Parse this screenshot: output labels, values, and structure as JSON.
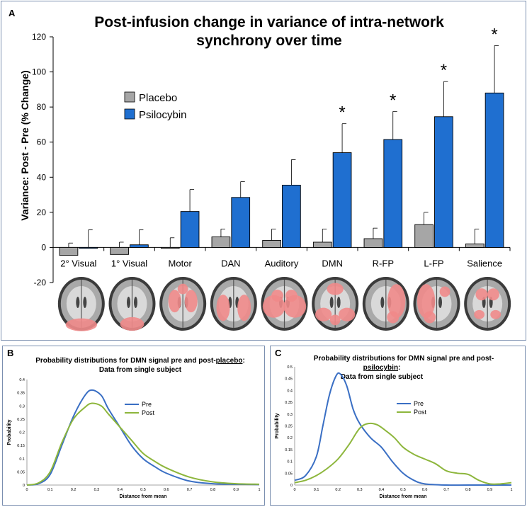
{
  "panel_a": {
    "letter": "A",
    "title_line1": "Post-infusion change in variance of intra-network",
    "title_line2": "synchrony over time",
    "ylabel": "Variance: Post - Pre (% Change)",
    "legend": [
      "Placebo",
      "Psilocybin"
    ],
    "colors": {
      "placebo": "#a6a6a6",
      "psilocybin": "#1f6fd0",
      "brain_highlight": "#ef8a8a"
    },
    "significance_marker": "*",
    "brain_images": [
      "2° Visual",
      "1° Visual",
      "Motor",
      "DAN",
      "Auditory",
      "DMN",
      "R-FP",
      "L-FP",
      "Salience"
    ]
  },
  "panel_b": {
    "letter": "B",
    "title_prefix": "Probability distributions for DMN signal pre and post-",
    "title_underlined": "placebo",
    "title_suffix": ":",
    "title_line2": "Data from single subject",
    "xlabel": "Distance from mean",
    "ylabel": "Probability",
    "legend": [
      "Pre",
      "Post"
    ]
  },
  "panel_c": {
    "letter": "C",
    "title_line1": "Probability distributions for DMN signal pre and post-",
    "title_underlined": "psilocybin",
    "title_suffix": ":",
    "title_line3": "Data from single subject",
    "xlabel": "Distance from mean",
    "ylabel": "Probability",
    "legend": [
      "Pre",
      "Post"
    ]
  },
  "chart_data": [
    {
      "type": "bar",
      "title": "Post-infusion change in variance of intra-network synchrony over time",
      "ylabel": "Variance: Post - Pre (% Change)",
      "xlabel": "",
      "categories": [
        "2° Visual",
        "1° Visual",
        "Motor",
        "DAN",
        "Auditory",
        "DMN",
        "R-FP",
        "L-FP",
        "Salience"
      ],
      "ylim": [
        -20,
        120
      ],
      "yticks": [
        -20,
        0,
        20,
        40,
        60,
        80,
        100,
        120
      ],
      "legend_position": "left-middle",
      "grid": false,
      "series": [
        {
          "name": "Placebo",
          "color": "#a6a6a6",
          "values": [
            -4.5,
            -4,
            -0.5,
            6,
            4,
            3,
            5,
            13,
            2
          ],
          "error_top": [
            2.5,
            3,
            5.5,
            10.5,
            10.5,
            10.5,
            11,
            20,
            10.5
          ]
        },
        {
          "name": "Psilocybin",
          "color": "#1f6fd0",
          "values": [
            -0.5,
            1.5,
            20.5,
            28.5,
            35.5,
            54,
            61.5,
            74.5,
            88
          ],
          "error_top": [
            10,
            10,
            33,
            37.5,
            50,
            70.5,
            77.5,
            94.5,
            115
          ]
        }
      ],
      "significant": [
        false,
        false,
        false,
        false,
        false,
        true,
        true,
        true,
        true
      ]
    },
    {
      "type": "line",
      "title": "Probability distributions for DMN signal pre and post-placebo: Data from single subject",
      "xlabel": "Distance from mean",
      "ylabel": "Probability",
      "xlim": [
        0,
        1
      ],
      "ylim": [
        0,
        0.4
      ],
      "xticks": [
        0,
        0.1,
        0.2,
        0.3,
        0.4,
        0.5,
        0.6,
        0.7,
        0.8,
        0.9,
        1
      ],
      "yticks": [
        0,
        0.05,
        0.1,
        0.15,
        0.2,
        0.25,
        0.3,
        0.35,
        0.4
      ],
      "legend_position": "upper-middle",
      "series": [
        {
          "name": "Pre",
          "color": "#3a6fc4",
          "x": [
            0,
            0.05,
            0.1,
            0.15,
            0.2,
            0.25,
            0.28,
            0.32,
            0.35,
            0.4,
            0.45,
            0.5,
            0.55,
            0.6,
            0.7,
            0.8,
            0.9,
            1.0
          ],
          "y": [
            0,
            0.005,
            0.04,
            0.15,
            0.26,
            0.34,
            0.36,
            0.34,
            0.29,
            0.22,
            0.15,
            0.1,
            0.07,
            0.045,
            0.015,
            0.005,
            0.003,
            0.002
          ]
        },
        {
          "name": "Post",
          "color": "#8db63c",
          "x": [
            0,
            0.05,
            0.1,
            0.15,
            0.2,
            0.25,
            0.28,
            0.32,
            0.35,
            0.4,
            0.45,
            0.5,
            0.55,
            0.6,
            0.7,
            0.8,
            0.9,
            1.0
          ],
          "y": [
            0,
            0.008,
            0.05,
            0.16,
            0.25,
            0.295,
            0.31,
            0.3,
            0.27,
            0.22,
            0.17,
            0.12,
            0.09,
            0.065,
            0.03,
            0.012,
            0.005,
            0.003
          ]
        }
      ]
    },
    {
      "type": "line",
      "title": "Probability distributions for DMN signal pre and post-psilocybin: Data from single subject",
      "xlabel": "Distance from mean",
      "ylabel": "Probability",
      "xlim": [
        0,
        1
      ],
      "ylim": [
        0,
        0.5
      ],
      "xticks": [
        0,
        0.1,
        0.2,
        0.3,
        0.4,
        0.5,
        0.6,
        0.7,
        0.8,
        0.9,
        1
      ],
      "yticks": [
        0,
        0.05,
        0.1,
        0.15,
        0.2,
        0.25,
        0.3,
        0.35,
        0.4,
        0.45,
        0.5
      ],
      "legend_position": "upper-middle",
      "series": [
        {
          "name": "Pre",
          "color": "#3a6fc4",
          "x": [
            0,
            0.05,
            0.1,
            0.13,
            0.16,
            0.19,
            0.21,
            0.24,
            0.27,
            0.3,
            0.35,
            0.4,
            0.45,
            0.5,
            0.55,
            0.6,
            0.7,
            0.8,
            1.0
          ],
          "y": [
            0.02,
            0.04,
            0.12,
            0.25,
            0.38,
            0.46,
            0.47,
            0.42,
            0.32,
            0.26,
            0.2,
            0.16,
            0.1,
            0.05,
            0.02,
            0.005,
            0,
            0,
            0
          ]
        },
        {
          "name": "Post",
          "color": "#8db63c",
          "x": [
            0,
            0.05,
            0.1,
            0.15,
            0.2,
            0.25,
            0.3,
            0.34,
            0.38,
            0.42,
            0.46,
            0.5,
            0.55,
            0.6,
            0.65,
            0.7,
            0.75,
            0.8,
            0.85,
            0.9,
            0.95,
            1.0
          ],
          "y": [
            0.01,
            0.02,
            0.04,
            0.07,
            0.11,
            0.17,
            0.24,
            0.26,
            0.255,
            0.23,
            0.2,
            0.16,
            0.13,
            0.11,
            0.09,
            0.06,
            0.05,
            0.045,
            0.02,
            0.005,
            0.005,
            0.01
          ]
        }
      ]
    }
  ]
}
